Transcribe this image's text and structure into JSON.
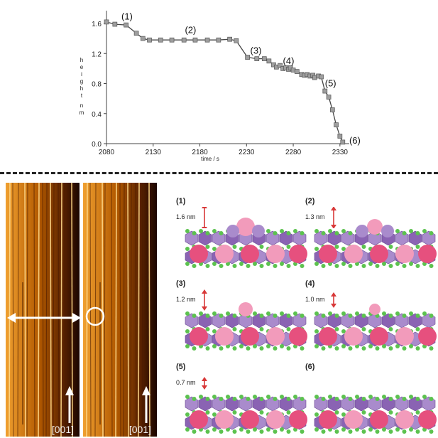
{
  "chart_data": {
    "type": "line",
    "xlabel": "time / s",
    "ylabel": "height nm",
    "ylabel_chars": [
      "h",
      "e",
      "i",
      "g",
      "h",
      "t",
      "n",
      "m"
    ],
    "xlim": [
      2080,
      2340
    ],
    "ylim": [
      0.0,
      1.6
    ],
    "xticks": [
      2080,
      2130,
      2180,
      2230,
      2280,
      2330
    ],
    "yticks": [
      0.0,
      0.4,
      0.8,
      1.2,
      1.6
    ],
    "ytick_labels": [
      "0.0",
      "0.4",
      "0.8",
      "1.2",
      "1.6"
    ],
    "x": [
      2080,
      2089,
      2101,
      2112,
      2119,
      2126,
      2138,
      2150,
      2163,
      2175,
      2188,
      2200,
      2212,
      2219,
      2231,
      2241,
      2249,
      2254,
      2259,
      2262,
      2266,
      2269,
      2272,
      2275,
      2277,
      2280,
      2284,
      2289,
      2292,
      2295,
      2298,
      2301,
      2303,
      2307,
      2310,
      2314,
      2318,
      2322,
      2326,
      2330,
      2333
    ],
    "y": [
      1.62,
      1.59,
      1.58,
      1.47,
      1.4,
      1.38,
      1.38,
      1.38,
      1.38,
      1.38,
      1.38,
      1.38,
      1.39,
      1.37,
      1.15,
      1.13,
      1.13,
      1.1,
      1.05,
      1.02,
      1.04,
      1.0,
      1.01,
      0.99,
      1.01,
      0.98,
      0.96,
      0.92,
      0.91,
      0.92,
      0.9,
      0.91,
      0.88,
      0.9,
      0.89,
      0.7,
      0.62,
      0.45,
      0.25,
      0.1,
      0.02
    ],
    "annotations": [
      {
        "text": "(1)",
        "x": 2102,
        "y": 1.65
      },
      {
        "text": "(2)",
        "x": 2170,
        "y": 1.47
      },
      {
        "text": "(3)",
        "x": 2240,
        "y": 1.2
      },
      {
        "text": "(4)",
        "x": 2275,
        "y": 1.06
      },
      {
        "text": "(5)",
        "x": 2320,
        "y": 0.76
      },
      {
        "text": "(6)",
        "x": 2346,
        "y": 0.0
      }
    ],
    "grid": false,
    "marker_color": "#9e9e9e",
    "line_color": "#444444"
  },
  "afm_images": {
    "scale_label_left": "[001]",
    "scale_label_right": "[001]",
    "colors": {
      "dark": "#1a0500",
      "mid": "#b35a00",
      "bright": "#f0a030",
      "highlight": "#ffd98a"
    }
  },
  "panels": [
    {
      "label": "(1)",
      "height": "1.6 nm"
    },
    {
      "label": "(2)",
      "height": "1.3 nm"
    },
    {
      "label": "(3)",
      "height": "1.2 nm"
    },
    {
      "label": "(4)",
      "height": "1.0 nm"
    },
    {
      "label": "(5)",
      "height": "0.7 nm"
    },
    {
      "label": "(6)",
      "height": ""
    }
  ],
  "colors": {
    "purple": "#8a63b3",
    "purple_light": "#a98bcc",
    "green": "#5cc24f",
    "pink": "#e6507e",
    "pink_light": "#f29bbb",
    "arrow_red": "#d83838"
  }
}
